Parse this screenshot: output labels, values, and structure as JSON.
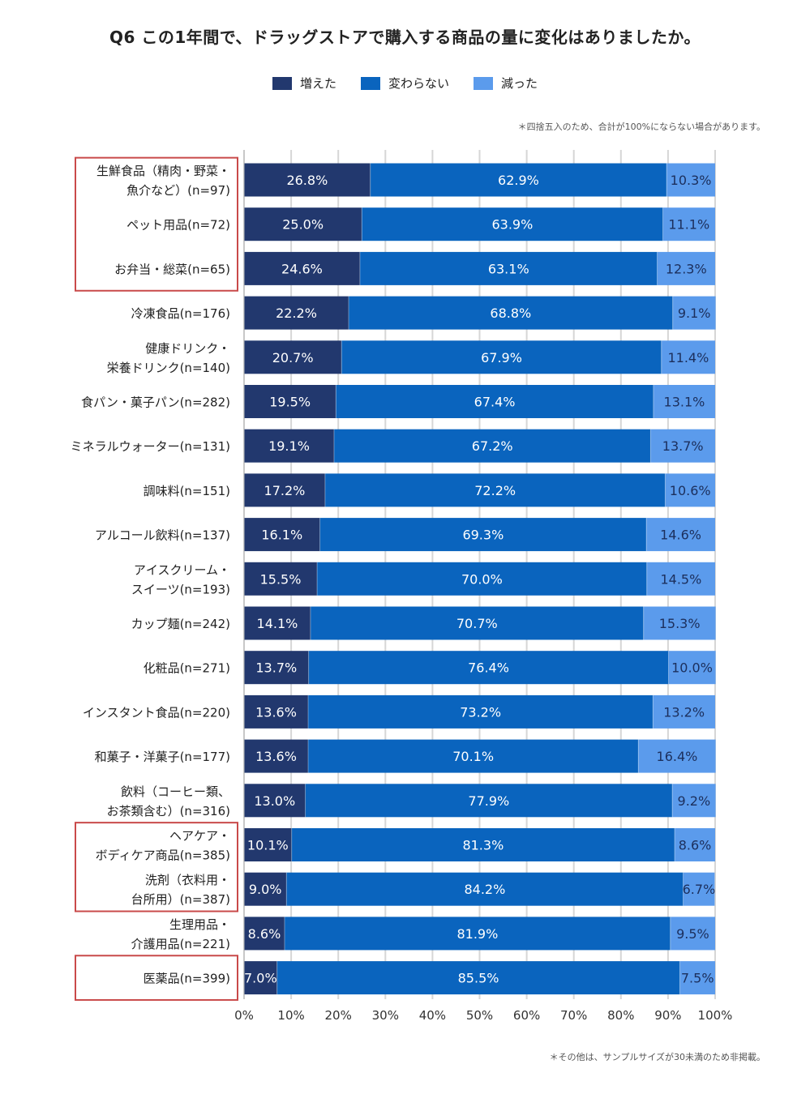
{
  "title": "Q6 この1年間で、ドラッグストアで購入する商品の量に変化はありましたか。",
  "note_top": "＊四捨五入のため、合計が100%にならない場合があります。",
  "note_bottom": "＊その他は、サンプルサイズが30未満のため非掲載。",
  "colors": {
    "increased": "#22386e",
    "unchanged": "#0a64be",
    "decreased": "#5b9bec",
    "highlight": "#c94a4a",
    "grid": "#d6d6d6"
  },
  "chart_data": {
    "type": "bar",
    "orientation": "horizontal",
    "stacked": true,
    "title": "Q6 この1年間で、ドラッグストアで購入する商品の量に変化はありましたか。",
    "xlim": [
      0,
      100
    ],
    "x_ticks": [
      "0%",
      "10%",
      "20%",
      "30%",
      "40%",
      "50%",
      "60%",
      "70%",
      "80%",
      "90%",
      "100%"
    ],
    "legend_position": "top-center",
    "series": [
      {
        "name": "増えた",
        "values": [
          26.8,
          25.0,
          24.6,
          22.2,
          20.7,
          19.5,
          19.1,
          17.2,
          16.1,
          15.5,
          14.1,
          13.7,
          13.6,
          13.6,
          13.0,
          10.1,
          9.0,
          8.6,
          7.0
        ]
      },
      {
        "name": "変わらない",
        "values": [
          62.9,
          63.9,
          63.1,
          68.8,
          67.9,
          67.4,
          67.2,
          72.2,
          69.3,
          70.0,
          70.7,
          76.4,
          73.2,
          70.1,
          77.9,
          81.3,
          84.2,
          81.9,
          85.5
        ]
      },
      {
        "name": "減った",
        "values": [
          10.3,
          11.1,
          12.3,
          9.1,
          11.4,
          13.1,
          13.7,
          10.6,
          14.6,
          14.5,
          15.3,
          10.0,
          13.2,
          16.4,
          9.2,
          8.6,
          6.7,
          9.5,
          7.5
        ]
      }
    ],
    "categories": [
      [
        "生鮮食品（精肉・野菜・",
        "魚介など）(n=97)"
      ],
      [
        "ペット用品(n=72)"
      ],
      [
        "お弁当・総菜(n=65)"
      ],
      [
        "冷凍食品(n=176)"
      ],
      [
        "健康ドリンク・",
        "栄養ドリンク(n=140)"
      ],
      [
        "食パン・菓子パン(n=282)"
      ],
      [
        "ミネラルウォーター(n=131)"
      ],
      [
        "調味料(n=151)"
      ],
      [
        "アルコール飲料(n=137)"
      ],
      [
        "アイスクリーム・",
        "スイーツ(n=193)"
      ],
      [
        "カップ麺(n=242)"
      ],
      [
        "化粧品(n=271)"
      ],
      [
        "インスタント食品(n=220)"
      ],
      [
        "和菓子・洋菓子(n=177)"
      ],
      [
        "飲料（コーヒー類、",
        "お茶類含む）(n=316)"
      ],
      [
        "ヘアケア・",
        "ボディケア商品(n=385)"
      ],
      [
        "洗剤（衣料用・",
        "台所用）(n=387)"
      ],
      [
        "生理用品・",
        "介護用品(n=221)"
      ],
      [
        "医薬品(n=399)"
      ]
    ],
    "highlighted_groups": [
      [
        0,
        2
      ],
      [
        15,
        16
      ],
      [
        18,
        18
      ]
    ]
  }
}
